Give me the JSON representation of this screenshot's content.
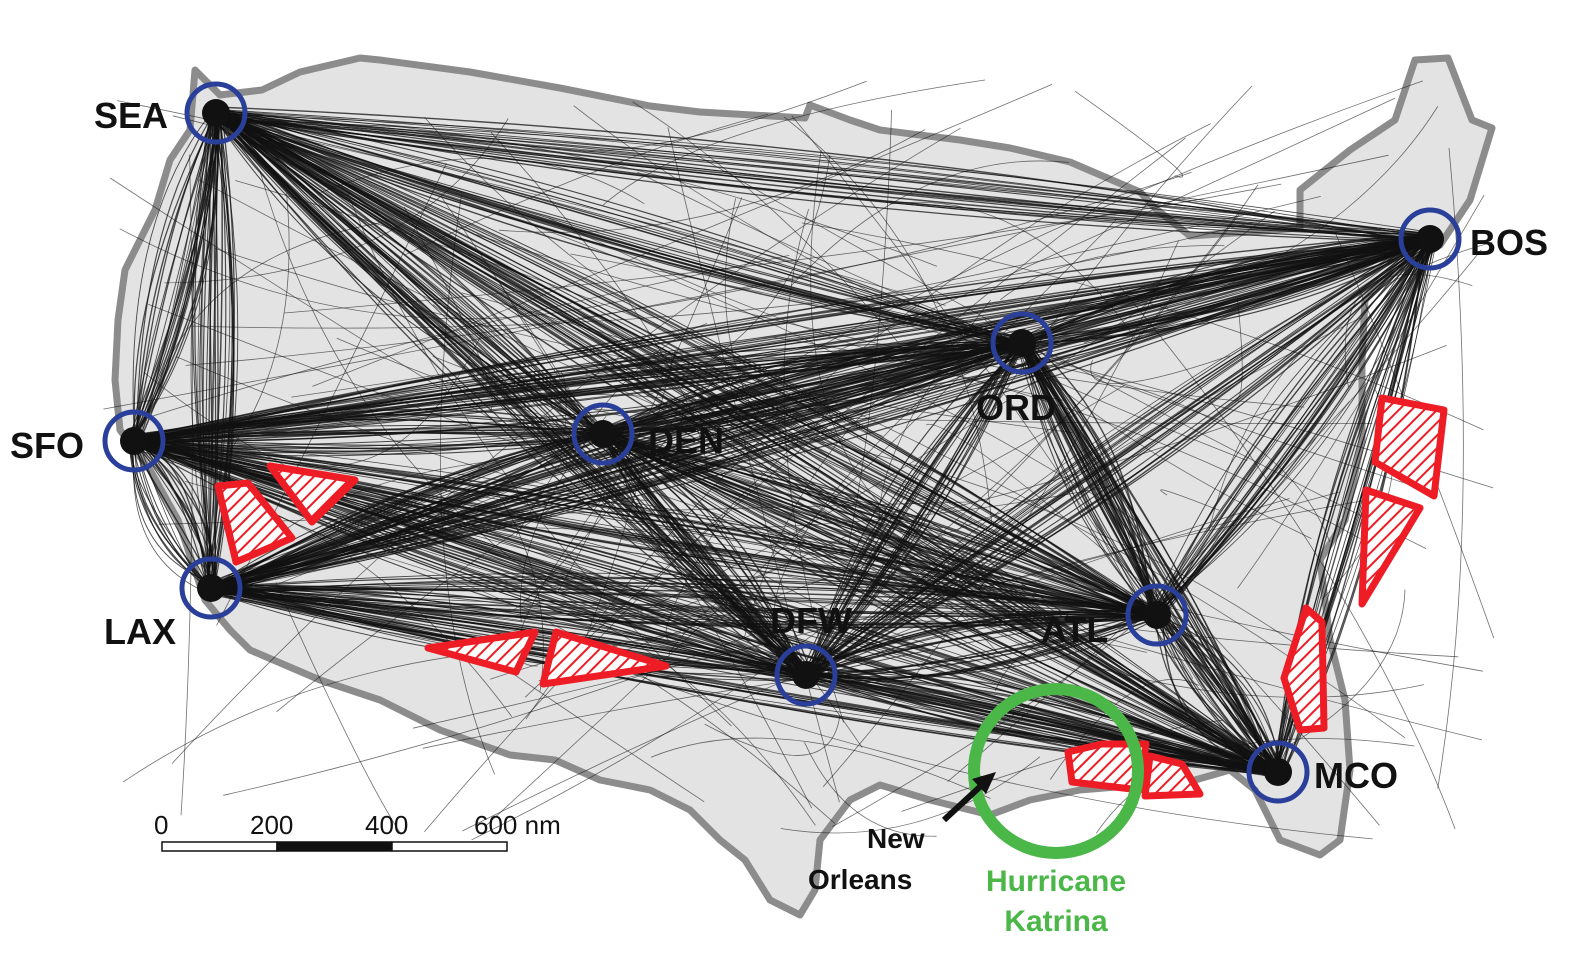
{
  "colors": {
    "land": "#e3e3e3",
    "border": "#8c8c8c",
    "tracks": "#111111",
    "airport_ring": "#2a3f9a",
    "weather_zone": "#ee1c24",
    "hurricane": "#4bb748"
  },
  "airports": [
    {
      "code": "SEA"
    },
    {
      "code": "BOS"
    },
    {
      "code": "ORD"
    },
    {
      "code": "SFO"
    },
    {
      "code": "DEN"
    },
    {
      "code": "LAX"
    },
    {
      "code": "DFW"
    },
    {
      "code": "ATL"
    },
    {
      "code": "MCO"
    }
  ],
  "weather_zones": {
    "count": 9,
    "pattern": "red diagonal hatch"
  },
  "scale_bar": {
    "ticks": [
      "0",
      "200",
      "400",
      "600 nm"
    ]
  },
  "annotations": {
    "new_orleans": [
      "New",
      "Orleans"
    ],
    "hurricane": [
      "Hurricane",
      "Katrina"
    ]
  }
}
